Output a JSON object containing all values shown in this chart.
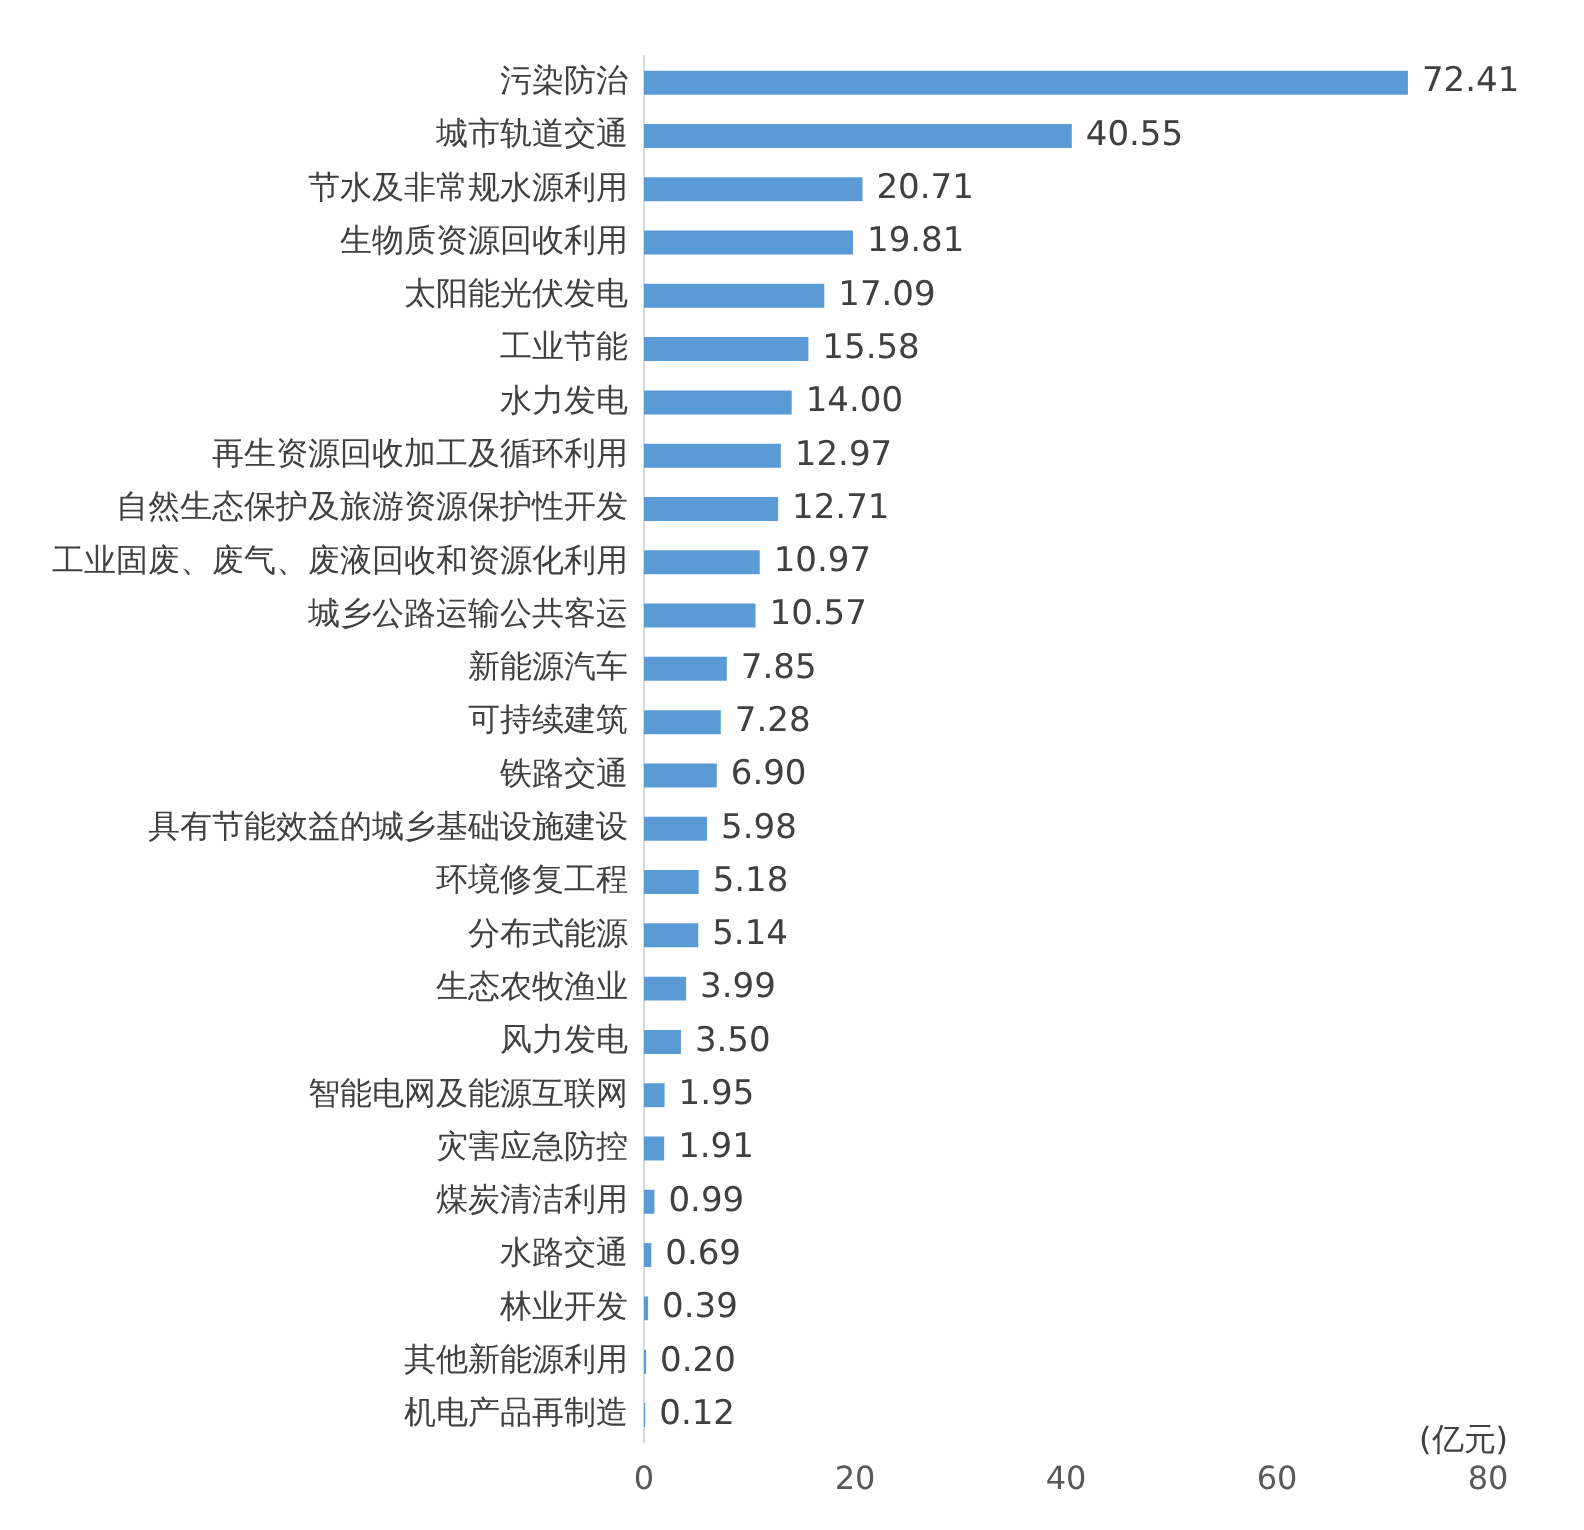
{
  "chart_data": {
    "type": "bar",
    "orientation": "horizontal",
    "categories": [
      "污染防治",
      "城市轨道交通",
      "节水及非常规水源利用",
      "生物质资源回收利用",
      "太阳能光伏发电",
      "工业节能",
      "水力发电",
      "再生资源回收加工及循环利用",
      "自然生态保护及旅游资源保护性开发",
      "工业固废、废气、废液回收和资源化利用",
      "城乡公路运输公共客运",
      "新能源汽车",
      "可持续建筑",
      "铁路交通",
      "具有节能效益的城乡基础设施建设",
      "环境修复工程",
      "分布式能源",
      "生态农牧渔业",
      "风力发电",
      "智能电网及能源互联网",
      "灾害应急防控",
      "煤炭清洁利用",
      "水路交通",
      "林业开发",
      "其他新能源利用",
      "机电产品再制造"
    ],
    "values": [
      72.41,
      40.55,
      20.71,
      19.81,
      17.09,
      15.58,
      14.0,
      12.97,
      12.71,
      10.97,
      10.57,
      7.85,
      7.28,
      6.9,
      5.98,
      5.18,
      5.14,
      3.99,
      3.5,
      1.95,
      1.91,
      0.99,
      0.69,
      0.39,
      0.2,
      0.12
    ],
    "value_labels": [
      "72.41",
      "40.55",
      "20.71",
      "19.81",
      "17.09",
      "15.58",
      "14.00",
      "12.97",
      "12.71",
      "10.97",
      "10.57",
      "7.85",
      "7.28",
      "6.90",
      "5.98",
      "5.18",
      "5.14",
      "3.99",
      "3.50",
      "1.95",
      "1.91",
      "0.99",
      "0.69",
      "0.39",
      "0.20",
      "0.12"
    ],
    "color": "#5b9bd5",
    "xlim": [
      0,
      80
    ],
    "xticks": [
      0,
      20,
      40,
      60,
      80
    ],
    "annotations": [
      "(亿元)"
    ],
    "grid": false,
    "legend": false
  }
}
